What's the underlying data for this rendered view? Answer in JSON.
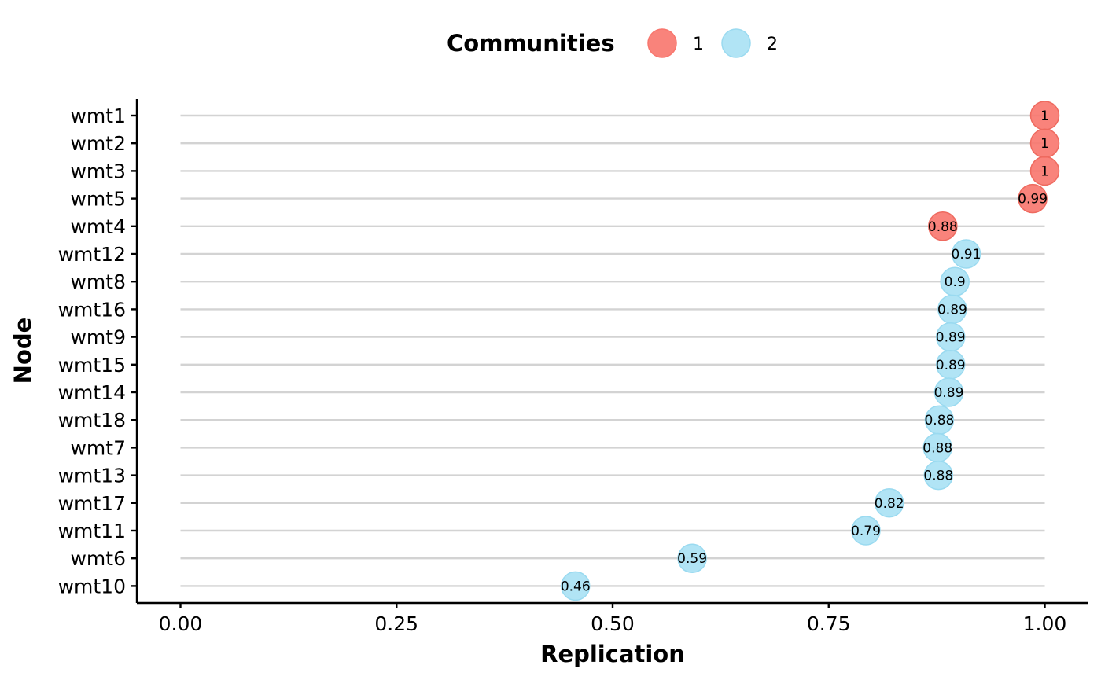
{
  "chart_data": {
    "type": "lollipop",
    "xlabel": "Replication",
    "ylabel": "Node",
    "xlim": [
      0,
      1
    ],
    "xticks": [
      "0.00",
      "0.25",
      "0.50",
      "0.75",
      "1.00"
    ],
    "xtick_values": [
      0,
      0.25,
      0.5,
      0.75,
      1.0
    ],
    "legend": {
      "title": "Communities",
      "position": "top",
      "entries": [
        {
          "label": "1",
          "color": "#F8766D"
        },
        {
          "label": "2",
          "color": "#A8E1F4"
        }
      ]
    },
    "grid": false,
    "points": [
      {
        "node": "wmt1",
        "value": 1.0,
        "label": "1",
        "community": "1"
      },
      {
        "node": "wmt2",
        "value": 1.0,
        "label": "1",
        "community": "1"
      },
      {
        "node": "wmt3",
        "value": 1.0,
        "label": "1",
        "community": "1"
      },
      {
        "node": "wmt5",
        "value": 0.986,
        "label": "0.99",
        "community": "1"
      },
      {
        "node": "wmt4",
        "value": 0.882,
        "label": "0.88",
        "community": "1"
      },
      {
        "node": "wmt12",
        "value": 0.909,
        "label": "0.91",
        "community": "2"
      },
      {
        "node": "wmt8",
        "value": 0.896,
        "label": "0.9",
        "community": "2"
      },
      {
        "node": "wmt16",
        "value": 0.893,
        "label": "0.89",
        "community": "2"
      },
      {
        "node": "wmt9",
        "value": 0.891,
        "label": "0.89",
        "community": "2"
      },
      {
        "node": "wmt15",
        "value": 0.891,
        "label": "0.89",
        "community": "2"
      },
      {
        "node": "wmt14",
        "value": 0.889,
        "label": "0.89",
        "community": "2"
      },
      {
        "node": "wmt18",
        "value": 0.878,
        "label": "0.88",
        "community": "2"
      },
      {
        "node": "wmt7",
        "value": 0.876,
        "label": "0.88",
        "community": "2"
      },
      {
        "node": "wmt13",
        "value": 0.877,
        "label": "0.88",
        "community": "2"
      },
      {
        "node": "wmt17",
        "value": 0.82,
        "label": "0.82",
        "community": "2"
      },
      {
        "node": "wmt11",
        "value": 0.793,
        "label": "0.79",
        "community": "2"
      },
      {
        "node": "wmt6",
        "value": 0.592,
        "label": "0.59",
        "community": "2"
      },
      {
        "node": "wmt10",
        "value": 0.457,
        "label": "0.46",
        "community": "2"
      }
    ]
  }
}
